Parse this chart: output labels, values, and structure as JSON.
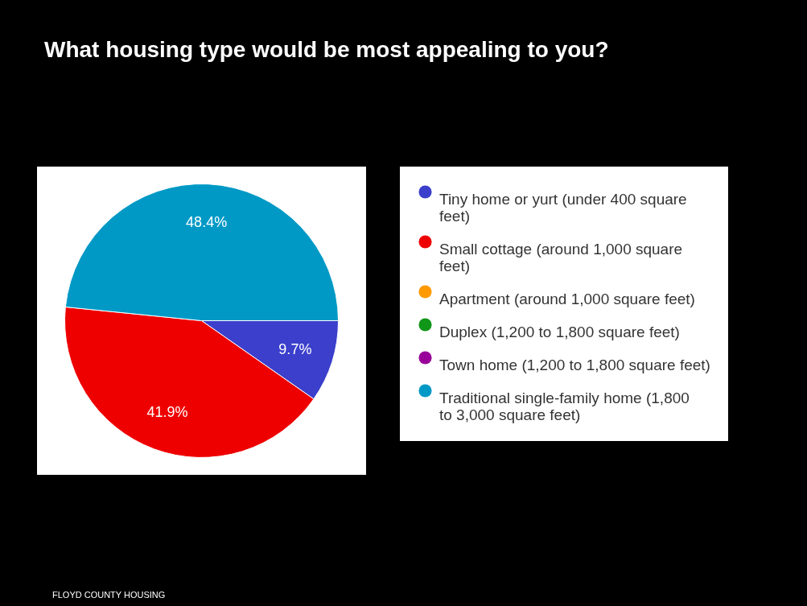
{
  "chart_data": {
    "type": "pie",
    "title": "What housing type would be most appealing to you?",
    "categories": [
      "Tiny home or yurt (under 400 square feet)",
      "Small cottage (around 1,000 square feet)",
      "Apartment (around 1,000 square feet)",
      "Duplex (1,200 to 1,800 square feet)",
      "Town home (1,200 to 1,800 square feet)",
      "Traditional single-family home (1,800 to 3,000 square feet)"
    ],
    "values": [
      9.7,
      41.9,
      0,
      0,
      0,
      48.4
    ],
    "colors": [
      "#3b3fcc",
      "#ee0000",
      "#ff9900",
      "#109618",
      "#990099",
      "#0099c6"
    ],
    "value_labels": [
      "9.7%",
      "41.9%",
      null,
      null,
      null,
      "48.4%"
    ],
    "legend": "right",
    "annotations": [
      "FLOYD COUNTY HOUSING"
    ]
  }
}
